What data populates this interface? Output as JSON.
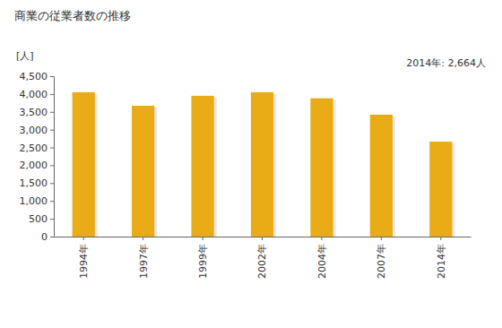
{
  "chart_data": {
    "type": "bar",
    "title": "商業の従業者数の推移",
    "y_label": "[人]",
    "annotation": "2014年: 2,664人",
    "categories": [
      "1994年",
      "1997年",
      "1999年",
      "2002年",
      "2004年",
      "2007年",
      "2014年"
    ],
    "values": [
      4050,
      3670,
      3950,
      4050,
      3880,
      3420,
      2664
    ],
    "color": "#e9ac17",
    "ylim": [
      0,
      4500
    ],
    "yticks": [
      0,
      500,
      {
        "value": 1000,
        "label": "1,000"
      },
      {
        "value": 1500,
        "label": "1,500"
      },
      {
        "value": 2000,
        "label": "2,000"
      },
      {
        "value": 2500,
        "label": "2,500"
      },
      {
        "value": 3000,
        "label": "3,000"
      },
      {
        "value": 3500,
        "label": "3,500"
      },
      {
        "value": 4000,
        "label": "4,000"
      },
      {
        "value": 4500,
        "label": "4,500"
      }
    ],
    "grid": false
  }
}
